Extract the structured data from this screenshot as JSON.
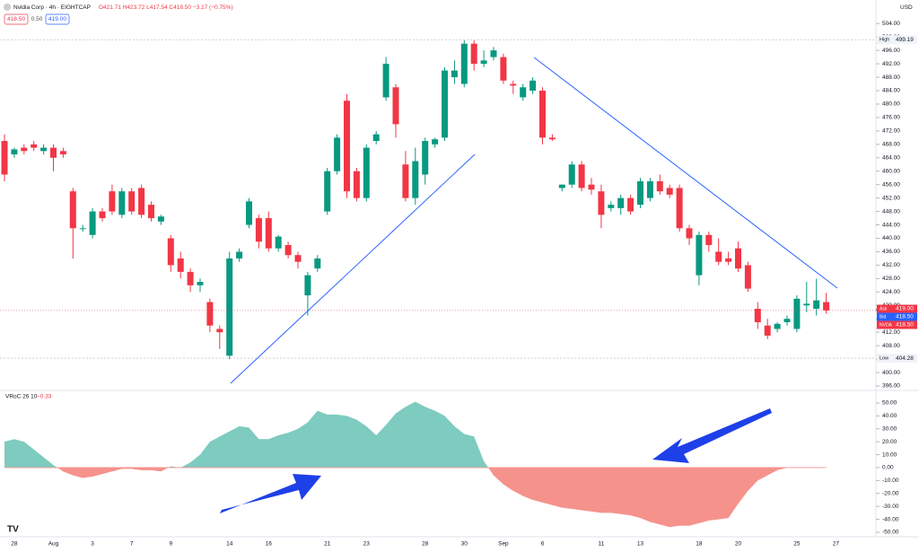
{
  "chart_data": [
    {
      "type": "candlestick",
      "title": "Nvidia Corp · 4h · EIGHTCAP",
      "ohlc_text": "O421.71 H423.72 L417.54 C418.50 −3.17 (−0.75%)",
      "quote_boxes": [
        "418.50",
        "0.50",
        "419.00"
      ],
      "currency": "USD",
      "up_color": "#089981",
      "down_color": "#f23645",
      "categories": [
        null,
        "28",
        null,
        null,
        null,
        "Aug",
        null,
        null,
        null,
        "3",
        null,
        null,
        null,
        "7",
        null,
        null,
        null,
        "9",
        null,
        null,
        null,
        null,
        null,
        "14",
        null,
        null,
        null,
        "16",
        null,
        null,
        null,
        null,
        null,
        "21",
        null,
        null,
        null,
        "23",
        null,
        null,
        null,
        null,
        null,
        "28",
        null,
        null,
        null,
        "30",
        null,
        null,
        null,
        "Sep",
        null,
        null,
        null,
        "6",
        null,
        null,
        null,
        null,
        null,
        "11",
        null,
        null,
        null,
        "13",
        null,
        null,
        null,
        null,
        null,
        "18",
        null,
        null,
        null,
        "20",
        null,
        null,
        null,
        null,
        null,
        "25",
        null,
        null,
        null,
        "27"
      ],
      "open": [
        469,
        465,
        467,
        468,
        466,
        467,
        466,
        454,
        443,
        441,
        448,
        454,
        447,
        454,
        455,
        450,
        445,
        440,
        434,
        430,
        426,
        421,
        413,
        405,
        434,
        444,
        446,
        446,
        437,
        438,
        435,
        423,
        431,
        448,
        460,
        481,
        460,
        452,
        469,
        482,
        485,
        462,
        452,
        459,
        468,
        470,
        488,
        486,
        498,
        492,
        494,
        494,
        486,
        482,
        484,
        484,
        470,
        455,
        456,
        462,
        456,
        454,
        449,
        449,
        452,
        450,
        452,
        457,
        455,
        455,
        443,
        429,
        441,
        436,
        434,
        437,
        432,
        419,
        414,
        413,
        415,
        413,
        420,
        419,
        421,
        null
      ],
      "high": [
        471,
        467,
        468,
        469,
        468,
        468,
        467,
        455,
        444,
        449,
        449,
        456,
        455,
        455,
        456,
        451,
        447,
        441,
        436,
        431,
        428,
        422,
        414,
        436,
        437,
        452,
        447,
        448,
        441,
        439,
        436,
        430,
        435,
        461,
        471,
        483,
        461,
        468,
        472,
        494,
        486,
        466,
        467,
        470,
        470,
        491,
        493,
        499,
        499,
        496,
        497,
        495,
        487,
        486,
        488,
        485,
        471,
        456,
        463,
        463,
        458,
        456,
        451,
        453,
        453,
        458,
        458,
        459,
        456,
        456,
        444,
        442,
        442,
        440,
        436,
        439,
        433,
        421,
        416,
        415,
        417,
        423,
        427,
        428,
        423.72,
        null
      ],
      "low": [
        457,
        464,
        465,
        466,
        465,
        460,
        464,
        434,
        442,
        440,
        445,
        447,
        446,
        447,
        446,
        445,
        444,
        430,
        428,
        424,
        424,
        412,
        407,
        404,
        433,
        443,
        437,
        436,
        436,
        434,
        431,
        417,
        430,
        447,
        459,
        452,
        451,
        451,
        468,
        481,
        470,
        451,
        450,
        456,
        467,
        469,
        486,
        485,
        490,
        491,
        493,
        486,
        483,
        481,
        483,
        468,
        469,
        454,
        455,
        454,
        453,
        443,
        448,
        447,
        447,
        449,
        451,
        453,
        452,
        442,
        438,
        426,
        436,
        432,
        432,
        430,
        424,
        413,
        410,
        412,
        414,
        412,
        418,
        417,
        417.54,
        null
      ],
      "close": [
        459,
        466.5,
        466,
        467,
        467,
        464,
        465,
        443,
        443,
        448,
        446,
        448,
        454,
        448,
        447,
        446,
        446.5,
        432,
        430,
        426,
        427,
        414,
        412,
        434,
        436,
        451,
        439,
        437,
        440.5,
        435,
        433,
        429,
        434,
        460,
        470,
        454,
        452,
        467,
        471,
        492,
        474,
        452,
        463,
        469,
        469.5,
        490,
        490,
        498,
        492,
        493,
        496,
        487,
        485.5,
        485,
        487,
        470,
        469.5,
        456,
        462,
        455,
        454.5,
        447,
        450,
        452,
        448,
        457,
        457,
        454,
        453,
        443,
        440,
        441,
        438,
        433,
        433,
        431,
        425,
        415,
        411,
        414.5,
        416,
        422,
        420.5,
        421.5,
        418.5,
        null
      ],
      "ylim": [
        395.2,
        506.2
      ],
      "yticks": [
        {
          "value": 396,
          "label": "396.00"
        },
        {
          "value": 400,
          "label": "400.00"
        },
        {
          "value": 404,
          "label": "404.00"
        },
        {
          "value": 408,
          "label": "408.00"
        },
        {
          "value": 412,
          "label": "412.00"
        },
        {
          "value": 416,
          "label": "416.00"
        },
        {
          "value": 420,
          "label": "420.00"
        },
        {
          "value": 424,
          "label": "424.00"
        },
        {
          "value": 428,
          "label": "428.00"
        },
        {
          "value": 432,
          "label": "432.00"
        },
        {
          "value": 436,
          "label": "436.00"
        },
        {
          "value": 440,
          "label": "440.00"
        },
        {
          "value": 444,
          "label": "444.00"
        },
        {
          "value": 448,
          "label": "448.00"
        },
        {
          "value": 452,
          "label": "452.00"
        },
        {
          "value": 456,
          "label": "456.00"
        },
        {
          "value": 460,
          "label": "460.00"
        },
        {
          "value": 464,
          "label": "464.00"
        },
        {
          "value": 468,
          "label": "468.00"
        },
        {
          "value": 472,
          "label": "472.00"
        },
        {
          "value": 476,
          "label": "476.00"
        },
        {
          "value": 480,
          "label": "480.00"
        },
        {
          "value": 484,
          "label": "484.00"
        },
        {
          "value": 488,
          "label": "488.00"
        },
        {
          "value": 492,
          "label": "492.00"
        },
        {
          "value": 496,
          "label": "496.00"
        },
        {
          "value": 500,
          "label": "500.00"
        },
        {
          "value": 504,
          "label": "504.00"
        }
      ],
      "price_lines": [
        {
          "name": "High",
          "value": 499.19,
          "label": "499.19"
        },
        {
          "name": "Low",
          "value": 404.28,
          "label": "404.28"
        }
      ],
      "quote_tags": [
        {
          "name": "Ask",
          "value": 419,
          "label": "419.00",
          "color": "#f23645"
        },
        {
          "name": "Bid",
          "value": 418.5,
          "label": "418.50",
          "color": "#2962ff"
        },
        {
          "name": "NVDA",
          "value": 418.5,
          "label": "418.50",
          "color": "#f23645"
        }
      ]
    },
    {
      "type": "area",
      "title": "VRoC 26 10",
      "last_label": "−0.33",
      "pos_color": "#7ecbbf",
      "neg_color": "#f5928c",
      "values": [
        20,
        22,
        20,
        14,
        8,
        2,
        -3,
        -6,
        -8,
        -7,
        -5,
        -3,
        -1,
        -1,
        -2,
        -2,
        -3,
        1,
        0,
        4,
        10,
        20,
        24,
        28,
        32,
        31,
        22,
        22,
        25,
        27,
        30,
        35,
        44,
        41,
        41,
        40,
        37,
        32,
        25,
        33,
        42,
        47,
        51,
        47,
        44,
        40,
        32,
        26,
        24,
        5,
        -6,
        -13,
        -18,
        -22,
        -25,
        -27,
        -29,
        -31,
        -32,
        -33,
        -34,
        -35,
        -35,
        -36,
        -37,
        -39,
        -42,
        -44,
        -46,
        -45,
        -45,
        -43,
        -41,
        -40,
        -39,
        -28,
        -18,
        -10,
        -6,
        -2,
        0,
        0,
        0,
        0,
        0,
        null
      ],
      "ylim": [
        -52.8,
        58.3
      ],
      "yticks": [
        {
          "value": 50,
          "label": "50.00"
        },
        {
          "value": 40,
          "label": "40.00"
        },
        {
          "value": 30,
          "label": "30.00"
        },
        {
          "value": 20,
          "label": "20.00"
        },
        {
          "value": 10,
          "label": "10.00"
        },
        {
          "value": 0,
          "label": "0.00"
        },
        {
          "value": -10,
          "label": "-10.00"
        },
        {
          "value": -20,
          "label": "-20.00"
        },
        {
          "value": -30,
          "label": "-30.00"
        },
        {
          "value": -40,
          "label": "-40.00"
        },
        {
          "value": -50,
          "label": "-50.00"
        }
      ]
    }
  ]
}
